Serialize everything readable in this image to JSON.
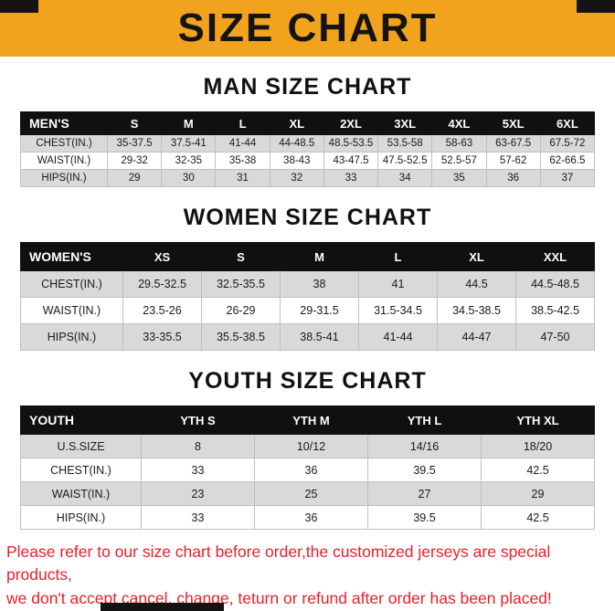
{
  "banner": {
    "title": "SIZE CHART"
  },
  "colors": {
    "banner_bg": "#F2A31D",
    "table_header_bg": "#101010",
    "row_alternate": "#D9D9D9",
    "footer_text": "#E8202C"
  },
  "tables": {
    "men": {
      "heading": "MAN SIZE CHART",
      "header": [
        "MEN'S",
        "S",
        "M",
        "L",
        "XL",
        "2XL",
        "3XL",
        "4XL",
        "5XL",
        "6XL"
      ],
      "rows": [
        [
          "CHEST(IN.)",
          "35-37.5",
          "37.5-41",
          "41-44",
          "44-48.5",
          "48.5-53.5",
          "53.5-58",
          "58-63",
          "63-67.5",
          "67.5-72"
        ],
        [
          "WAIST(IN.)",
          "29-32",
          "32-35",
          "35-38",
          "38-43",
          "43-47.5",
          "47.5-52.5",
          "52.5-57",
          "57-62",
          "62-66.5"
        ],
        [
          "HIPS(IN.)",
          "29",
          "30",
          "31",
          "32",
          "33",
          "34",
          "35",
          "36",
          "37"
        ]
      ]
    },
    "women": {
      "heading": "WOMEN SIZE CHART",
      "header": [
        "WOMEN'S",
        "XS",
        "S",
        "M",
        "L",
        "XL",
        "XXL"
      ],
      "rows": [
        [
          "CHEST(IN.)",
          "29.5-32.5",
          "32.5-35.5",
          "38",
          "41",
          "44.5",
          "44.5-48.5"
        ],
        [
          "WAIST(IN.)",
          "23.5-26",
          "26-29",
          "29-31.5",
          "31.5-34.5",
          "34.5-38.5",
          "38.5-42.5"
        ],
        [
          "HIPS(IN.)",
          "33-35.5",
          "35.5-38.5",
          "38.5-41",
          "41-44",
          "44-47",
          "47-50"
        ]
      ]
    },
    "youth": {
      "heading": "YOUTH SIZE CHART",
      "header": [
        "YOUTH",
        "YTH S",
        "YTH M",
        "YTH L",
        "YTH XL"
      ],
      "rows": [
        [
          "U.S.SIZE",
          "8",
          "10/12",
          "14/16",
          "18/20"
        ],
        [
          "CHEST(IN.)",
          "33",
          "36",
          "39.5",
          "42.5"
        ],
        [
          "WAIST(IN.)",
          "23",
          "25",
          "27",
          "29"
        ],
        [
          "HIPS(IN.)",
          "33",
          "36",
          "39.5",
          "42.5"
        ]
      ]
    }
  },
  "footer": {
    "line1": "Please refer to our size chart before order,the customized jerseys are special products,",
    "line2": "we don't accept cancel, change, teturn or refund after order has been placed!"
  }
}
